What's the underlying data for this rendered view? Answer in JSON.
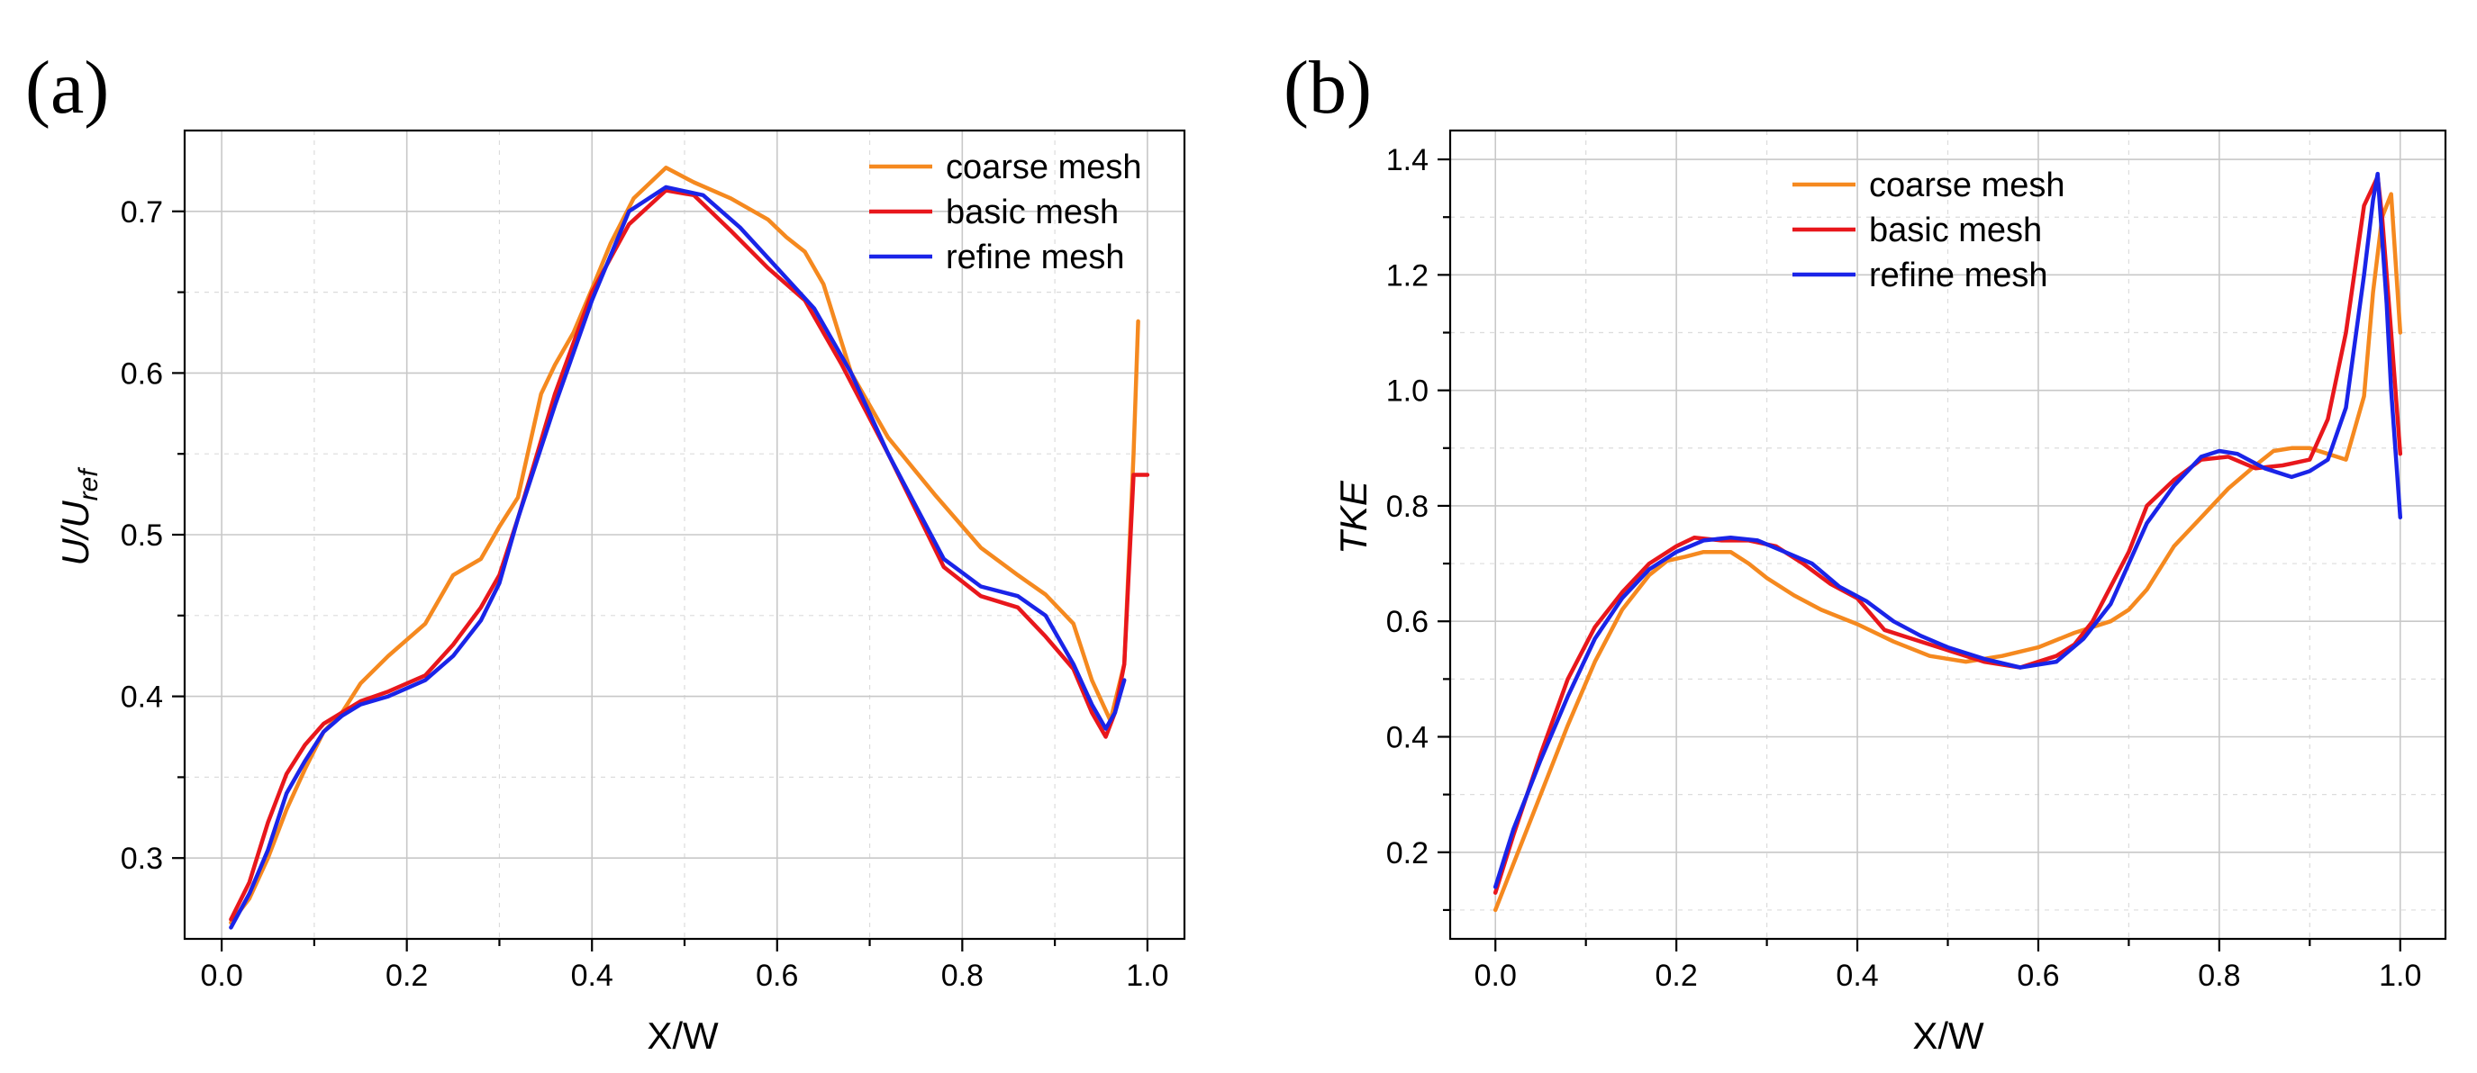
{
  "figure": {
    "panels": [
      "(a)",
      "(b)"
    ]
  },
  "chart_data": [
    {
      "type": "line",
      "panel_label": "(a)",
      "xlabel": "X/W",
      "ylabel": {
        "base": "U/U",
        "sub": "ref"
      },
      "xlim": [
        -0.04,
        1.04
      ],
      "ylim": [
        0.25,
        0.75
      ],
      "xticks": [
        "0.0",
        "0.2",
        "0.4",
        "0.6",
        "0.8",
        "1.0"
      ],
      "yticks": [
        "0.3",
        "0.4",
        "0.5",
        "0.6",
        "0.7"
      ],
      "legend_position": "top-right",
      "series": [
        {
          "name": "coarse mesh",
          "color": "#f5891f",
          "x": [
            0.01,
            0.03,
            0.05,
            0.07,
            0.09,
            0.11,
            0.13,
            0.15,
            0.18,
            0.22,
            0.25,
            0.28,
            0.3,
            0.32,
            0.345,
            0.36,
            0.38,
            0.4,
            0.42,
            0.445,
            0.48,
            0.51,
            0.55,
            0.59,
            0.61,
            0.63,
            0.65,
            0.68,
            0.72,
            0.77,
            0.82,
            0.86,
            0.89,
            0.92,
            0.94,
            0.96,
            0.975,
            0.985,
            0.99
          ],
          "y": [
            0.26,
            0.275,
            0.3,
            0.33,
            0.355,
            0.378,
            0.39,
            0.408,
            0.425,
            0.445,
            0.475,
            0.485,
            0.505,
            0.523,
            0.587,
            0.605,
            0.625,
            0.652,
            0.68,
            0.708,
            0.727,
            0.718,
            0.708,
            0.695,
            0.684,
            0.675,
            0.655,
            0.6,
            0.56,
            0.525,
            0.492,
            0.475,
            0.463,
            0.445,
            0.41,
            0.385,
            0.42,
            0.55,
            0.632
          ]
        },
        {
          "name": "basic mesh",
          "color": "#e8171c",
          "x": [
            0.01,
            0.03,
            0.05,
            0.07,
            0.09,
            0.11,
            0.13,
            0.15,
            0.18,
            0.22,
            0.25,
            0.28,
            0.3,
            0.32,
            0.36,
            0.4,
            0.44,
            0.48,
            0.51,
            0.55,
            0.59,
            0.63,
            0.67,
            0.72,
            0.78,
            0.82,
            0.86,
            0.89,
            0.92,
            0.94,
            0.955,
            0.965,
            0.975,
            0.985,
            0.99,
            1.0
          ],
          "y": [
            0.262,
            0.285,
            0.322,
            0.352,
            0.37,
            0.383,
            0.39,
            0.397,
            0.403,
            0.413,
            0.432,
            0.455,
            0.475,
            0.51,
            0.587,
            0.65,
            0.692,
            0.713,
            0.71,
            0.688,
            0.665,
            0.645,
            0.605,
            0.55,
            0.48,
            0.462,
            0.455,
            0.437,
            0.417,
            0.39,
            0.375,
            0.39,
            0.42,
            0.537,
            0.537,
            0.537
          ]
        },
        {
          "name": "refine mesh",
          "color": "#1a24e8",
          "x": [
            0.01,
            0.03,
            0.05,
            0.07,
            0.09,
            0.11,
            0.13,
            0.15,
            0.18,
            0.22,
            0.25,
            0.28,
            0.3,
            0.32,
            0.36,
            0.4,
            0.44,
            0.48,
            0.52,
            0.56,
            0.6,
            0.64,
            0.68,
            0.72,
            0.78,
            0.82,
            0.86,
            0.89,
            0.92,
            0.94,
            0.955,
            0.965,
            0.975
          ],
          "y": [
            0.257,
            0.278,
            0.305,
            0.34,
            0.36,
            0.378,
            0.388,
            0.395,
            0.4,
            0.41,
            0.425,
            0.447,
            0.47,
            0.51,
            0.58,
            0.645,
            0.7,
            0.715,
            0.71,
            0.69,
            0.665,
            0.64,
            0.6,
            0.55,
            0.485,
            0.468,
            0.462,
            0.45,
            0.42,
            0.395,
            0.38,
            0.39,
            0.41
          ]
        }
      ]
    },
    {
      "type": "line",
      "panel_label": "(b)",
      "xlabel": "X/W",
      "ylabel": "TKE",
      "xlim": [
        -0.05,
        1.05
      ],
      "ylim": [
        0.05,
        1.45
      ],
      "xticks": [
        "0.0",
        "0.2",
        "0.4",
        "0.6",
        "0.8",
        "1.0"
      ],
      "yticks": [
        "0.2",
        "0.4",
        "0.6",
        "0.8",
        "1.0",
        "1.2",
        "1.4"
      ],
      "legend_position": "top-center",
      "series": [
        {
          "name": "coarse mesh",
          "color": "#f5891f",
          "x": [
            0.0,
            0.02,
            0.05,
            0.08,
            0.11,
            0.14,
            0.17,
            0.19,
            0.21,
            0.23,
            0.26,
            0.28,
            0.3,
            0.33,
            0.36,
            0.4,
            0.44,
            0.48,
            0.52,
            0.56,
            0.6,
            0.64,
            0.68,
            0.7,
            0.72,
            0.75,
            0.78,
            0.81,
            0.84,
            0.86,
            0.88,
            0.9,
            0.92,
            0.94,
            0.96,
            0.97,
            0.98,
            0.99,
            1.0
          ],
          "y": [
            0.1,
            0.18,
            0.3,
            0.42,
            0.53,
            0.62,
            0.68,
            0.705,
            0.712,
            0.72,
            0.72,
            0.7,
            0.675,
            0.645,
            0.62,
            0.595,
            0.565,
            0.54,
            0.53,
            0.54,
            0.555,
            0.58,
            0.6,
            0.62,
            0.655,
            0.73,
            0.78,
            0.83,
            0.87,
            0.895,
            0.9,
            0.9,
            0.89,
            0.88,
            0.99,
            1.17,
            1.3,
            1.34,
            1.1
          ]
        },
        {
          "name": "basic mesh",
          "color": "#e8171c",
          "x": [
            0.0,
            0.02,
            0.05,
            0.08,
            0.11,
            0.14,
            0.17,
            0.2,
            0.22,
            0.25,
            0.28,
            0.31,
            0.34,
            0.37,
            0.4,
            0.43,
            0.46,
            0.5,
            0.54,
            0.58,
            0.62,
            0.64,
            0.66,
            0.68,
            0.7,
            0.72,
            0.75,
            0.78,
            0.81,
            0.84,
            0.87,
            0.9,
            0.92,
            0.94,
            0.96,
            0.975,
            0.98,
            0.99,
            1.0
          ],
          "y": [
            0.13,
            0.23,
            0.37,
            0.5,
            0.59,
            0.65,
            0.7,
            0.73,
            0.745,
            0.74,
            0.74,
            0.73,
            0.7,
            0.665,
            0.64,
            0.585,
            0.57,
            0.55,
            0.53,
            0.52,
            0.54,
            0.56,
            0.6,
            0.66,
            0.72,
            0.8,
            0.845,
            0.88,
            0.885,
            0.865,
            0.87,
            0.88,
            0.95,
            1.1,
            1.32,
            1.37,
            1.3,
            1.1,
            0.89
          ]
        },
        {
          "name": "refine mesh",
          "color": "#1a24e8",
          "x": [
            0.0,
            0.02,
            0.05,
            0.08,
            0.11,
            0.14,
            0.17,
            0.2,
            0.23,
            0.26,
            0.29,
            0.32,
            0.35,
            0.38,
            0.41,
            0.44,
            0.47,
            0.5,
            0.54,
            0.58,
            0.62,
            0.65,
            0.68,
            0.7,
            0.72,
            0.75,
            0.78,
            0.8,
            0.82,
            0.85,
            0.88,
            0.9,
            0.92,
            0.94,
            0.96,
            0.97,
            0.975,
            0.985,
            0.99,
            1.0
          ],
          "y": [
            0.14,
            0.24,
            0.36,
            0.47,
            0.57,
            0.64,
            0.69,
            0.72,
            0.74,
            0.745,
            0.74,
            0.72,
            0.7,
            0.66,
            0.635,
            0.6,
            0.575,
            0.555,
            0.535,
            0.52,
            0.53,
            0.57,
            0.63,
            0.7,
            0.77,
            0.835,
            0.885,
            0.895,
            0.89,
            0.865,
            0.85,
            0.86,
            0.88,
            0.97,
            1.2,
            1.33,
            1.375,
            1.15,
            1.0,
            0.78
          ]
        }
      ]
    }
  ]
}
